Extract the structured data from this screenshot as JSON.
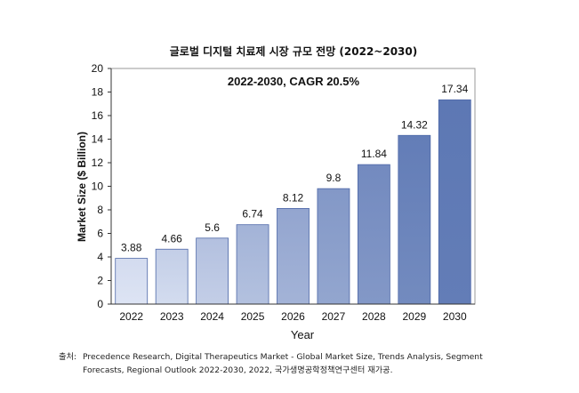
{
  "chart_data": {
    "type": "bar",
    "title": "글로벌 디지털 치료제 시장 규모 전망 (2022~2030)",
    "annotation": "2022-2030, CAGR 20.5%",
    "xlabel": "Year",
    "ylabel": "Market Size ($ Billion)",
    "categories": [
      "2022",
      "2023",
      "2024",
      "2025",
      "2026",
      "2027",
      "2028",
      "2029",
      "2030"
    ],
    "values": [
      3.88,
      4.66,
      5.6,
      6.74,
      8.12,
      9.8,
      11.84,
      14.32,
      17.34
    ],
    "data_labels": [
      "3.88",
      "4.66",
      "5.6",
      "6.74",
      "8.12",
      "9.8",
      "11.84",
      "14.32",
      "17.34"
    ],
    "ylim": [
      0,
      20
    ],
    "yticks": [
      "0",
      "2",
      "4",
      "6",
      "8",
      "10",
      "12",
      "14",
      "16",
      "18",
      "20"
    ],
    "grid": false,
    "legend": "none",
    "colors": {
      "bar_light": "#dde4f4",
      "bar_dark": "#5d78b4",
      "bar_border": "#4e68a8",
      "axis": "#333333",
      "frame": "#9a9a9a"
    }
  },
  "source": {
    "prefix": "출처:",
    "text": "Precedence Research, Digital Therapeutics Market - Global Market Size, Trends Analysis, Segment Forecasts, Regional Outlook 2022-2030, 2022, 국가생명공학정책연구센터 재가공."
  }
}
